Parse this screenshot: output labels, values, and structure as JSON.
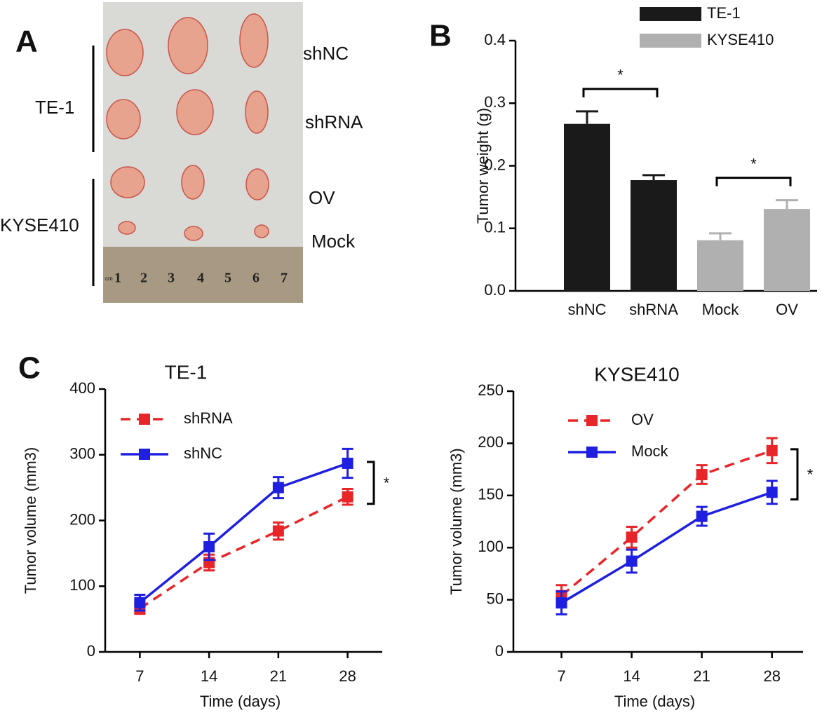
{
  "panel_labels": [
    "A",
    "B",
    "C"
  ],
  "photo": {
    "group_labels": [
      "TE-1",
      "KYSE410"
    ],
    "row_labels": [
      "shNC",
      "shRNA",
      "OV",
      "Mock"
    ],
    "ruler_unit": "cm",
    "ruler_numbers": [
      "1",
      "2",
      "3",
      "4",
      "5",
      "6",
      "7"
    ]
  },
  "chart_data": [
    {
      "type": "bar",
      "ylabel": "Tumor weight (g)",
      "categories": [
        "shNC",
        "shRNA",
        "Mock",
        "OV"
      ],
      "series": [
        {
          "name": "TE-1",
          "color": "#1a1a1a",
          "values": [
            0.267,
            0.177,
            null,
            null
          ],
          "errors": [
            0.02,
            0.008,
            null,
            null
          ]
        },
        {
          "name": "KYSE410",
          "color": "#b0b0b0",
          "values": [
            null,
            null,
            0.081,
            0.131
          ],
          "errors": [
            null,
            null,
            0.011,
            0.014
          ]
        }
      ],
      "ylim": [
        0,
        0.4
      ],
      "yticks": [
        {
          "value": 0,
          "label": "0.0"
        },
        0.1,
        0.2,
        0.3,
        0.4
      ],
      "annotations": [
        "*",
        "*"
      ]
    },
    {
      "type": "line",
      "title": "TE-1",
      "xlabel": "Time (days)",
      "ylabel": "Tumor volume (mm3)",
      "x": [
        7,
        14,
        21,
        28
      ],
      "xlim": [
        3.5,
        31.5
      ],
      "xticks": [
        7,
        14,
        21,
        28
      ],
      "ylim": [
        0,
        400
      ],
      "yticks": [
        0,
        100,
        200,
        300,
        400
      ],
      "series": [
        {
          "name": "shRNA",
          "color": "#e8262a",
          "dashed": true,
          "values": [
            66,
            136,
            184,
            236
          ],
          "errors": [
            8,
            12,
            13,
            12
          ]
        },
        {
          "name": "shNC",
          "color": "#1f1fe0",
          "dashed": false,
          "values": [
            75,
            160,
            250,
            287
          ],
          "errors": [
            12,
            20,
            16,
            22
          ]
        }
      ],
      "annotations": [
        "*"
      ]
    },
    {
      "type": "line",
      "title": "KYSE410",
      "xlabel": "Time (days)",
      "ylabel": "Tumor volume (mm3)",
      "x": [
        7,
        14,
        21,
        28
      ],
      "xlim": [
        2.2,
        31.1
      ],
      "xticks": [
        7,
        14,
        21,
        28
      ],
      "ylim": [
        0,
        250
      ],
      "yticks": [
        0,
        50,
        100,
        150,
        200,
        250
      ],
      "series": [
        {
          "name": "OV",
          "color": "#e8262a",
          "dashed": true,
          "values": [
            54,
            110,
            170,
            193
          ],
          "errors": [
            10,
            10,
            9,
            12
          ]
        },
        {
          "name": "Mock",
          "color": "#1f1fe0",
          "dashed": false,
          "values": [
            47,
            87,
            130,
            153
          ],
          "errors": [
            11,
            11,
            9,
            11
          ]
        }
      ],
      "annotations": [
        "*"
      ]
    }
  ]
}
